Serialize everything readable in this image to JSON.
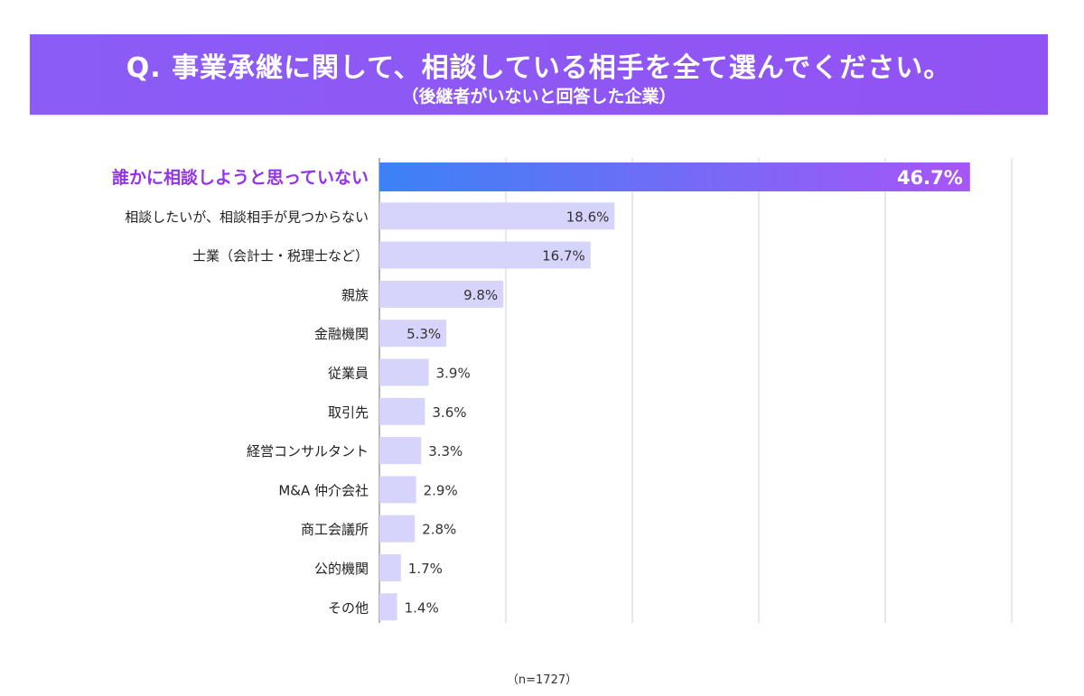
{
  "header": {
    "title": "Q. 事業承継に関して、相談している相手を全て選んでください。",
    "subtitle": "（後継者がいないと回答した企業）"
  },
  "footnote": "（n=1727）",
  "colors": {
    "banner": "#8b5cf6",
    "bar": "#d6d4fb",
    "highlight_start": "#3b82f6",
    "highlight_end": "#a855f7",
    "highlight_label": "#9333ea",
    "grid": "#d9d9e0",
    "axis": "#9a9aa6"
  },
  "chart_data": {
    "type": "bar",
    "orientation": "horizontal",
    "categories": [
      "誰かに相談しようと思っていない",
      "相談したいが、相談相手が見つからない",
      "士業（会計士・税理士など）",
      "親族",
      "金融機関",
      "従業員",
      "取引先",
      "経営コンサルタント",
      "M&A 仲介会社",
      "商工会議所",
      "公的機関",
      "その他"
    ],
    "values": [
      46.7,
      18.6,
      16.7,
      9.8,
      5.3,
      3.9,
      3.6,
      3.3,
      2.9,
      2.8,
      1.7,
      1.4
    ],
    "value_labels": [
      "46.7%",
      "18.6%",
      "16.7%",
      "9.8%",
      "5.3%",
      "3.9%",
      "3.6%",
      "3.3%",
      "2.9%",
      "2.8%",
      "1.7%",
      "1.4%"
    ],
    "highlight_index": 0,
    "xlim": [
      0,
      50
    ],
    "grid_step": 10,
    "grid": true,
    "legend": "none"
  }
}
